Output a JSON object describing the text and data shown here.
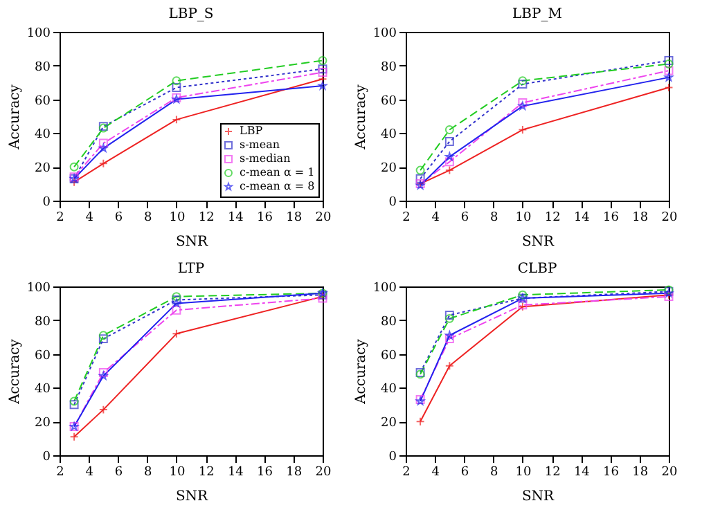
{
  "chart_data": [
    {
      "type": "line",
      "title": "LBP_S",
      "xlabel": "SNR",
      "ylabel": "Accuracy",
      "x": [
        3,
        5,
        10,
        20
      ],
      "xlim": [
        2,
        20
      ],
      "xticks": [
        2,
        4,
        6,
        8,
        10,
        12,
        14,
        16,
        18,
        20
      ],
      "ylim": [
        0,
        100
      ],
      "yticks": [
        0,
        20,
        40,
        60,
        80,
        100
      ],
      "legend": "bottom right",
      "series": [
        {
          "name": "LBP",
          "color": "#ee2222",
          "marker": "cross",
          "line_style": "solid",
          "values": [
            11,
            22,
            48,
            72
          ]
        },
        {
          "name": "s-mean",
          "color": "#3333cc",
          "marker": "square",
          "line_style": "dotted",
          "values": [
            13,
            44,
            67,
            78
          ]
        },
        {
          "name": "s-median",
          "color": "#ee44ee",
          "marker": "square",
          "line_style": "dashdot",
          "values": [
            14,
            34,
            61,
            76
          ]
        },
        {
          "name": "c-mean α = 1",
          "color": "#22cc22",
          "marker": "circle",
          "line_style": "dashed",
          "values": [
            20,
            43,
            71,
            83
          ]
        },
        {
          "name": "c-mean α = 8",
          "color": "#2222ee",
          "marker": "star",
          "line_style": "solid",
          "values": [
            13,
            31,
            60,
            68
          ]
        }
      ]
    },
    {
      "type": "line",
      "title": "LBP_M",
      "xlabel": "SNR",
      "ylabel": "Accuracy",
      "x": [
        3,
        5,
        10,
        20
      ],
      "xlim": [
        2,
        20
      ],
      "xticks": [
        2,
        4,
        6,
        8,
        10,
        12,
        14,
        16,
        18,
        20
      ],
      "ylim": [
        0,
        100
      ],
      "yticks": [
        0,
        20,
        40,
        60,
        80,
        100
      ],
      "series": [
        {
          "color": "#ee2222",
          "marker": "cross",
          "line_style": "solid",
          "values": [
            10,
            18,
            42,
            67
          ]
        },
        {
          "color": "#3333cc",
          "marker": "square",
          "line_style": "dotted",
          "values": [
            13,
            35,
            69,
            83
          ]
        },
        {
          "color": "#ee44ee",
          "marker": "square",
          "line_style": "dashdot",
          "values": [
            10,
            23,
            58,
            77
          ]
        },
        {
          "color": "#22cc22",
          "marker": "circle",
          "line_style": "dashed",
          "values": [
            18,
            42,
            71,
            81
          ]
        },
        {
          "color": "#2222ee",
          "marker": "star",
          "line_style": "solid",
          "values": [
            9,
            26,
            56,
            73
          ]
        }
      ]
    },
    {
      "type": "line",
      "title": "LTP",
      "xlabel": "SNR",
      "ylabel": "Accuracy",
      "x": [
        3,
        5,
        10,
        20
      ],
      "xlim": [
        2,
        20
      ],
      "xticks": [
        2,
        4,
        6,
        8,
        10,
        12,
        14,
        16,
        18,
        20
      ],
      "ylim": [
        0,
        100
      ],
      "yticks": [
        0,
        20,
        40,
        60,
        80,
        100
      ],
      "series": [
        {
          "color": "#ee2222",
          "marker": "cross",
          "line_style": "solid",
          "values": [
            11,
            27,
            72,
            94
          ]
        },
        {
          "color": "#3333cc",
          "marker": "square",
          "line_style": "dotted",
          "values": [
            30,
            69,
            92,
            95
          ]
        },
        {
          "color": "#ee44ee",
          "marker": "square",
          "line_style": "dashdot",
          "values": [
            17,
            49,
            86,
            93
          ]
        },
        {
          "color": "#22cc22",
          "marker": "circle",
          "line_style": "dashed",
          "values": [
            32,
            71,
            94,
            96
          ]
        },
        {
          "color": "#2222ee",
          "marker": "star",
          "line_style": "solid",
          "values": [
            17,
            47,
            90,
            96
          ]
        }
      ]
    },
    {
      "type": "line",
      "title": "CLBP",
      "xlabel": "SNR",
      "ylabel": "Accuracy",
      "x": [
        3,
        5,
        10,
        20
      ],
      "xlim": [
        2,
        20
      ],
      "xticks": [
        2,
        4,
        6,
        8,
        10,
        12,
        14,
        16,
        18,
        20
      ],
      "ylim": [
        0,
        100
      ],
      "yticks": [
        0,
        20,
        40,
        60,
        80,
        100
      ],
      "series": [
        {
          "color": "#ee2222",
          "marker": "cross",
          "line_style": "solid",
          "values": [
            20,
            53,
            88,
            95
          ]
        },
        {
          "color": "#3333cc",
          "marker": "square",
          "line_style": "dotted",
          "values": [
            49,
            83,
            93,
            97
          ]
        },
        {
          "color": "#ee44ee",
          "marker": "square",
          "line_style": "dashdot",
          "values": [
            33,
            69,
            89,
            94
          ]
        },
        {
          "color": "#22cc22",
          "marker": "circle",
          "line_style": "dashed",
          "values": [
            48,
            81,
            95,
            98
          ]
        },
        {
          "color": "#2222ee",
          "marker": "star",
          "line_style": "solid",
          "values": [
            32,
            71,
            93,
            96
          ]
        }
      ]
    }
  ]
}
